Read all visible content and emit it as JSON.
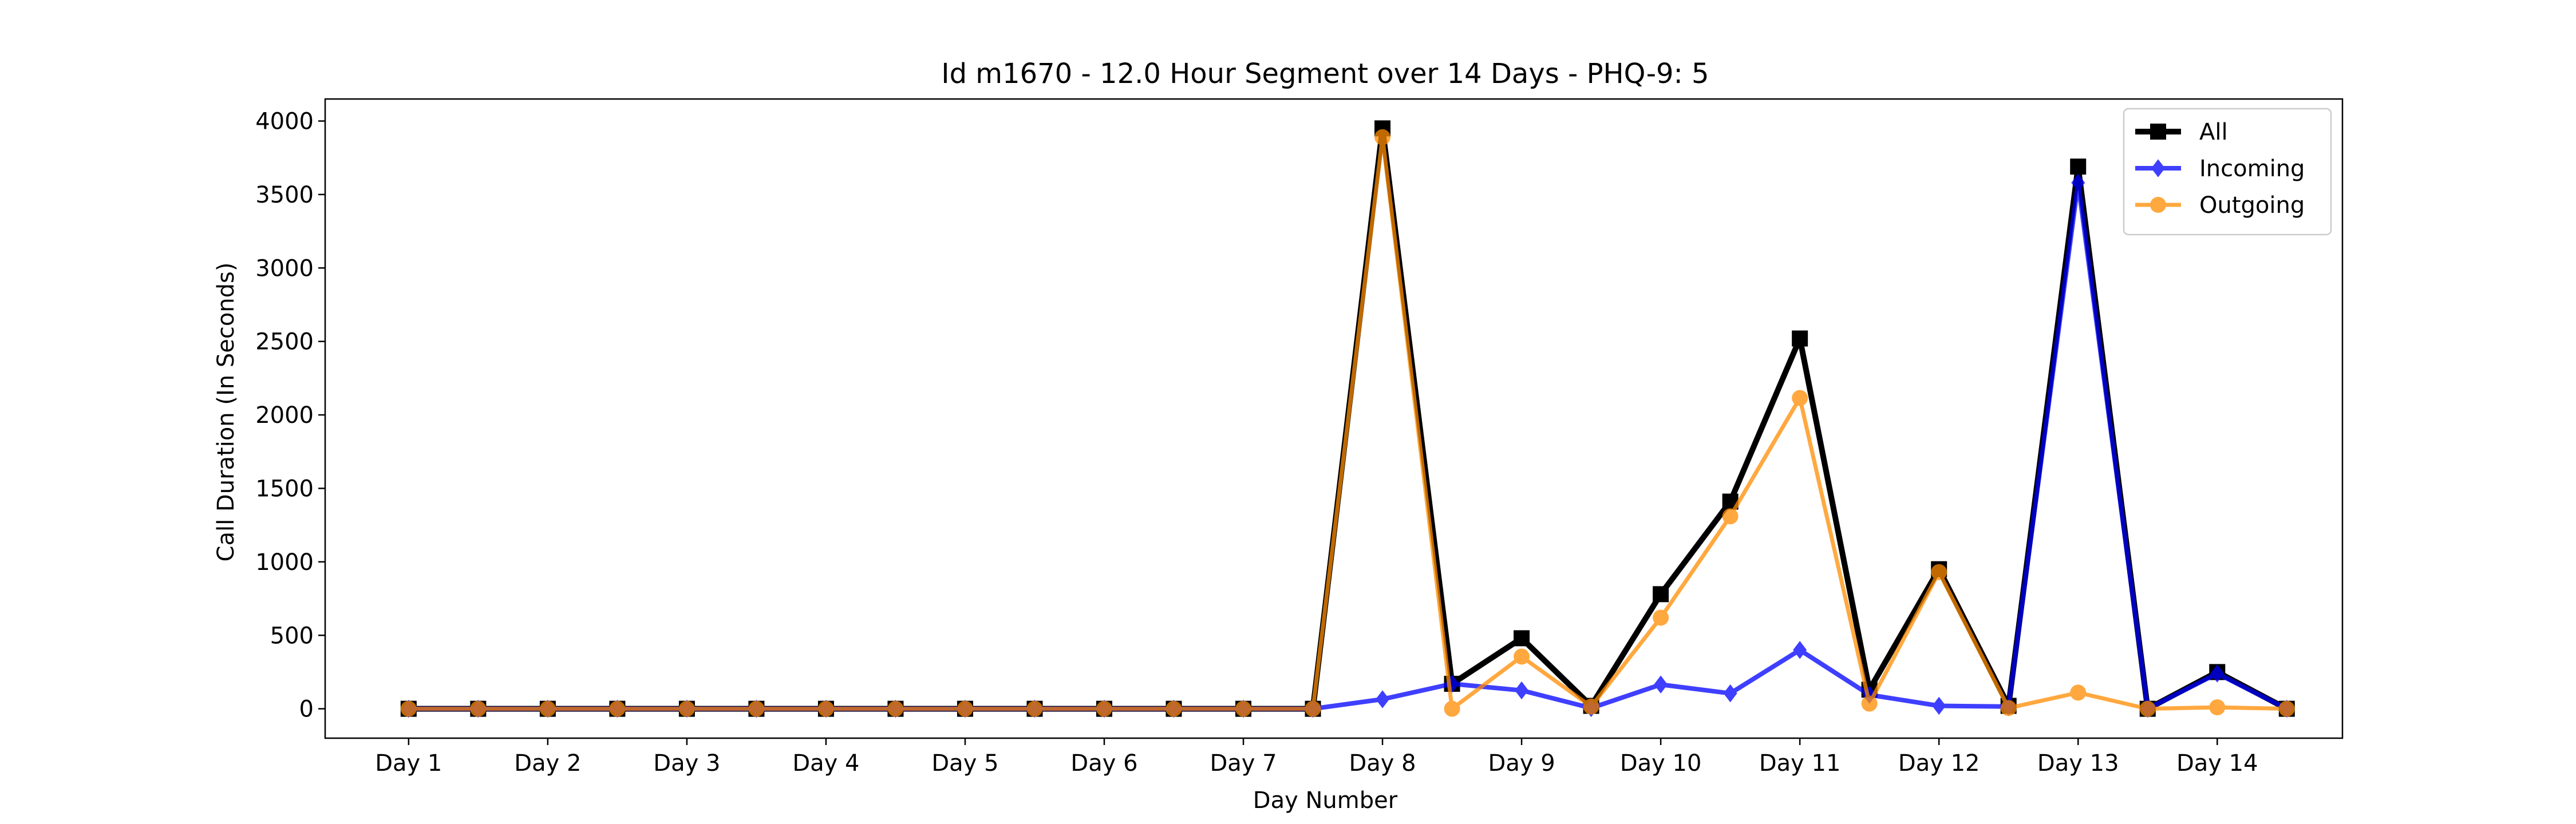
{
  "chart_data": {
    "type": "line",
    "title": "Id m1670 - 12.0 Hour Segment over 14 Days - PHQ-9: 5",
    "xlabel": "Day Number",
    "ylabel": "Call Duration (In Seconds)",
    "xtick_labels": [
      "Day 1",
      "Day 2",
      "Day 3",
      "Day 4",
      "Day 5",
      "Day 6",
      "Day 7",
      "Day 8",
      "Day 9",
      "Day 10",
      "Day 11",
      "Day 12",
      "Day 13",
      "Day 14"
    ],
    "yticks": [
      0,
      500,
      1000,
      1500,
      2000,
      2500,
      3000,
      3500,
      4000
    ],
    "ylim": [
      -200,
      4150
    ],
    "xlim": [
      0.4,
      14.9
    ],
    "grid": false,
    "legend_position": "top-right",
    "x": [
      1,
      1.5,
      2,
      2.5,
      3,
      3.5,
      4,
      4.5,
      5,
      5.5,
      6,
      6.5,
      7,
      7.5,
      8,
      8.5,
      9,
      9.5,
      10,
      10.5,
      11,
      11.5,
      12,
      12.5,
      13,
      13.5,
      14,
      14.5
    ],
    "series": [
      {
        "name": "All",
        "color": "#000000",
        "marker": "square",
        "values": [
          0,
          0,
          0,
          0,
          0,
          0,
          0,
          0,
          0,
          0,
          0,
          0,
          0,
          0,
          3950,
          170,
          480,
          20,
          780,
          1410,
          2520,
          130,
          950,
          20,
          3690,
          0,
          250,
          0
        ]
      },
      {
        "name": "Incoming",
        "color": "#0000ff",
        "marker": "diamond",
        "values": [
          0,
          0,
          0,
          0,
          0,
          0,
          0,
          0,
          0,
          0,
          0,
          0,
          0,
          0,
          65,
          170,
          125,
          5,
          165,
          105,
          400,
          95,
          20,
          15,
          3580,
          0,
          240,
          0
        ]
      },
      {
        "name": "Outgoing",
        "color": "#ff8c00",
        "marker": "circle",
        "values": [
          0,
          0,
          0,
          0,
          0,
          0,
          0,
          0,
          0,
          0,
          0,
          0,
          0,
          0,
          3890,
          0,
          355,
          15,
          620,
          1310,
          2115,
          35,
          930,
          5,
          110,
          0,
          10,
          0
        ]
      }
    ]
  }
}
